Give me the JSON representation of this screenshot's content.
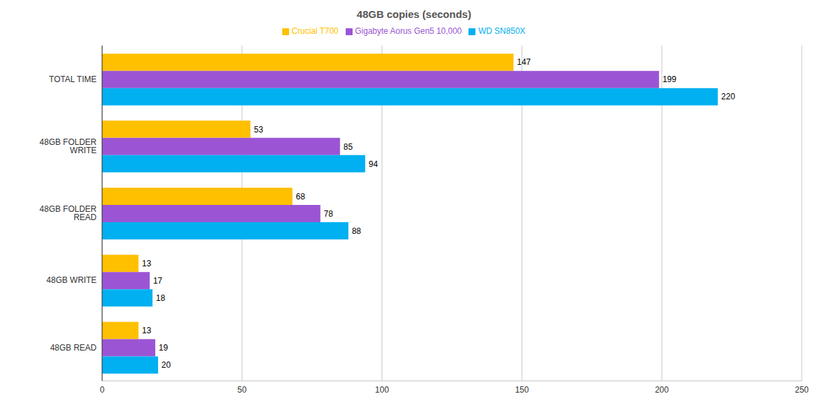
{
  "chart_data": {
    "type": "bar",
    "title": "48GB copies (seconds)",
    "orientation": "horizontal",
    "categories": [
      "TOTAL TIME",
      "48GB FOLDER WRITE",
      "48GB FOLDER READ",
      "48GB WRITE",
      "48GB READ"
    ],
    "series": [
      {
        "name": "Crucial T700",
        "color": "#ffc000",
        "values": [
          147,
          53,
          68,
          13,
          13
        ]
      },
      {
        "name": "Gigabyte Aorus Gen5 10,000",
        "color": "#9b55d4",
        "values": [
          199,
          85,
          78,
          17,
          19
        ]
      },
      {
        "name": "WD SN850X",
        "color": "#00b0f0",
        "values": [
          220,
          94,
          88,
          18,
          20
        ]
      }
    ],
    "xlim": [
      0,
      250
    ],
    "xticks": [
      0,
      50,
      100,
      150,
      200,
      250
    ],
    "grid": true,
    "legend": "top",
    "data_labels": true
  }
}
